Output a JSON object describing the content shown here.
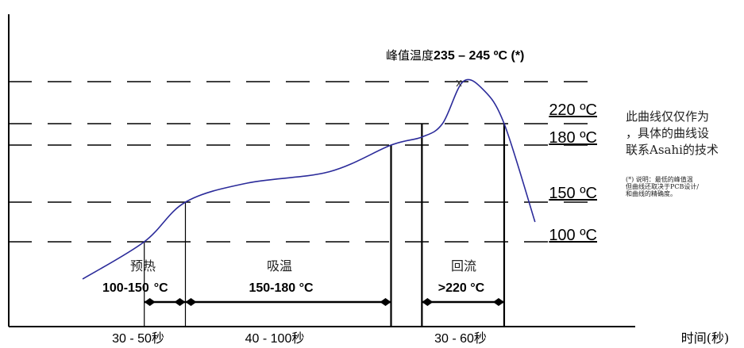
{
  "chart_data": {
    "type": "line",
    "title": "",
    "xlabel": "时间(秒)",
    "ylabel": "",
    "peak_label_prefix": "峰值温度",
    "peak_label_value": "235 – 245 ºC (*)",
    "peak_marker": "x",
    "temp_levels": [
      {
        "value": 245,
        "label": ""
      },
      {
        "value": 220,
        "label": "220 ºC"
      },
      {
        "value": 180,
        "label": "180 ºC"
      },
      {
        "value": 150,
        "label": "150 ºC"
      },
      {
        "value": 100,
        "label": "100 ºC"
      }
    ],
    "curve": [
      {
        "t": 0,
        "temp": 50
      },
      {
        "t": 30,
        "temp": 100
      },
      {
        "t": 50,
        "temp": 150
      },
      {
        "t": 80,
        "temp": 160
      },
      {
        "t": 120,
        "temp": 166
      },
      {
        "t": 150,
        "temp": 180
      },
      {
        "t": 165,
        "temp": 195
      },
      {
        "t": 175,
        "temp": 220
      },
      {
        "t": 185,
        "temp": 245
      },
      {
        "t": 195,
        "temp": 240
      },
      {
        "t": 205,
        "temp": 220
      },
      {
        "t": 220,
        "temp": 125
      }
    ],
    "phases": [
      {
        "name": "预热",
        "temp_range_prefix": "100-150",
        "temp_range_unit": "°C",
        "duration": "30 - 50秒"
      },
      {
        "name": "吸温",
        "temp_range": "150-180 °C",
        "duration": "40 - 100秒"
      },
      {
        "name": "回流",
        "temp_range": ">220 °C",
        "duration": "30 - 60秒"
      }
    ]
  },
  "notes": {
    "line1": "此曲线仅仅作为",
    "line2": "，具体的曲线设",
    "line3": "联系Asahi的技术",
    "footnote1": "(*) 说明：最低的峰值温",
    "footnote2": "但曲线还取决于PCB设计/",
    "footnote3": "和曲线的精确度。"
  }
}
